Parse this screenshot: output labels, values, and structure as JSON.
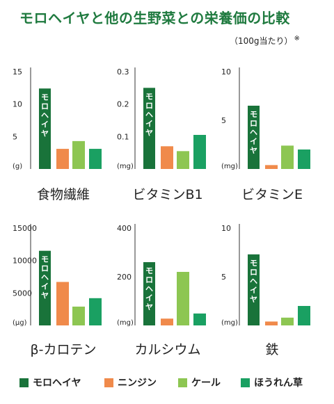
{
  "header": {
    "title": "モロヘイヤと他の生野菜との栄養価の比較",
    "note": "（100g当たり）",
    "note_mark": "※"
  },
  "colors": {
    "moroheiya": "#19733a",
    "ninjin": "#f08a4b",
    "kale": "#8dc652",
    "horenso": "#1aa062"
  },
  "legend": [
    {
      "name": "モロヘイヤ",
      "color": "#19733a"
    },
    {
      "name": "ニンジン",
      "color": "#f08a4b"
    },
    {
      "name": "ケール",
      "color": "#8dc652"
    },
    {
      "name": "ほうれん草",
      "color": "#1aa062"
    }
  ],
  "chart_data": [
    {
      "type": "bar",
      "title": "食物繊維",
      "unit": "(g)",
      "ylim": [
        0,
        15
      ],
      "yticks": [
        "15",
        "10",
        "5"
      ],
      "tick_values": [
        15,
        10,
        5
      ],
      "categories": [
        "モロヘイヤ",
        "ニンジン",
        "ケール",
        "ほうれん草"
      ],
      "values": [
        12.4,
        3.1,
        4.3,
        3.1
      ],
      "bar_label": "モロヘイヤ"
    },
    {
      "type": "bar",
      "title": "ビタミンB1",
      "unit": "(mg)",
      "ylim": [
        0,
        0.3
      ],
      "yticks": [
        "0.3",
        "0.2",
        "0.1"
      ],
      "tick_values": [
        0.3,
        0.2,
        0.1
      ],
      "categories": [
        "モロヘイヤ",
        "ニンジン",
        "ケール",
        "ほうれん草"
      ],
      "values": [
        0.25,
        0.07,
        0.055,
        0.105
      ],
      "bar_label": "モロヘイヤ"
    },
    {
      "type": "bar",
      "title": "ビタミンE",
      "unit": "(mg)",
      "ylim": [
        0,
        10
      ],
      "yticks": [
        "10",
        "5"
      ],
      "tick_values": [
        10,
        5
      ],
      "categories": [
        "モロヘイヤ",
        "ニンジン",
        "ケール",
        "ほうれん草"
      ],
      "values": [
        6.5,
        0.4,
        2.4,
        2.0
      ],
      "bar_label": "モロヘイヤ"
    },
    {
      "type": "bar",
      "title": "β-カロテン",
      "unit": "(μg)",
      "ylim": [
        0,
        15000
      ],
      "yticks": [
        "15000",
        "10000",
        "5000"
      ],
      "tick_values": [
        15000,
        10000,
        5000
      ],
      "categories": [
        "モロヘイヤ",
        "ニンジン",
        "ケール",
        "ほうれん草"
      ],
      "values": [
        11500,
        6700,
        2900,
        4200
      ],
      "bar_label": "モロヘイヤ"
    },
    {
      "type": "bar",
      "title": "カルシウム",
      "unit": "(mg)",
      "ylim": [
        0,
        400
      ],
      "yticks": [
        "400",
        "200"
      ],
      "tick_values": [
        400,
        200
      ],
      "categories": [
        "モロヘイヤ",
        "ニンジン",
        "ケール",
        "ほうれん草"
      ],
      "values": [
        260,
        28,
        220,
        49
      ],
      "bar_label": "モロヘイヤ"
    },
    {
      "type": "bar",
      "title": "鉄",
      "unit": "(mg)",
      "ylim": [
        0,
        10
      ],
      "yticks": [
        "10",
        "5"
      ],
      "tick_values": [
        10,
        5
      ],
      "categories": [
        "モロヘイヤ",
        "ニンジン",
        "ケール",
        "ほうれん草"
      ],
      "values": [
        7.3,
        0.4,
        0.8,
        2.0
      ],
      "bar_label": "モロヘイヤ"
    }
  ]
}
